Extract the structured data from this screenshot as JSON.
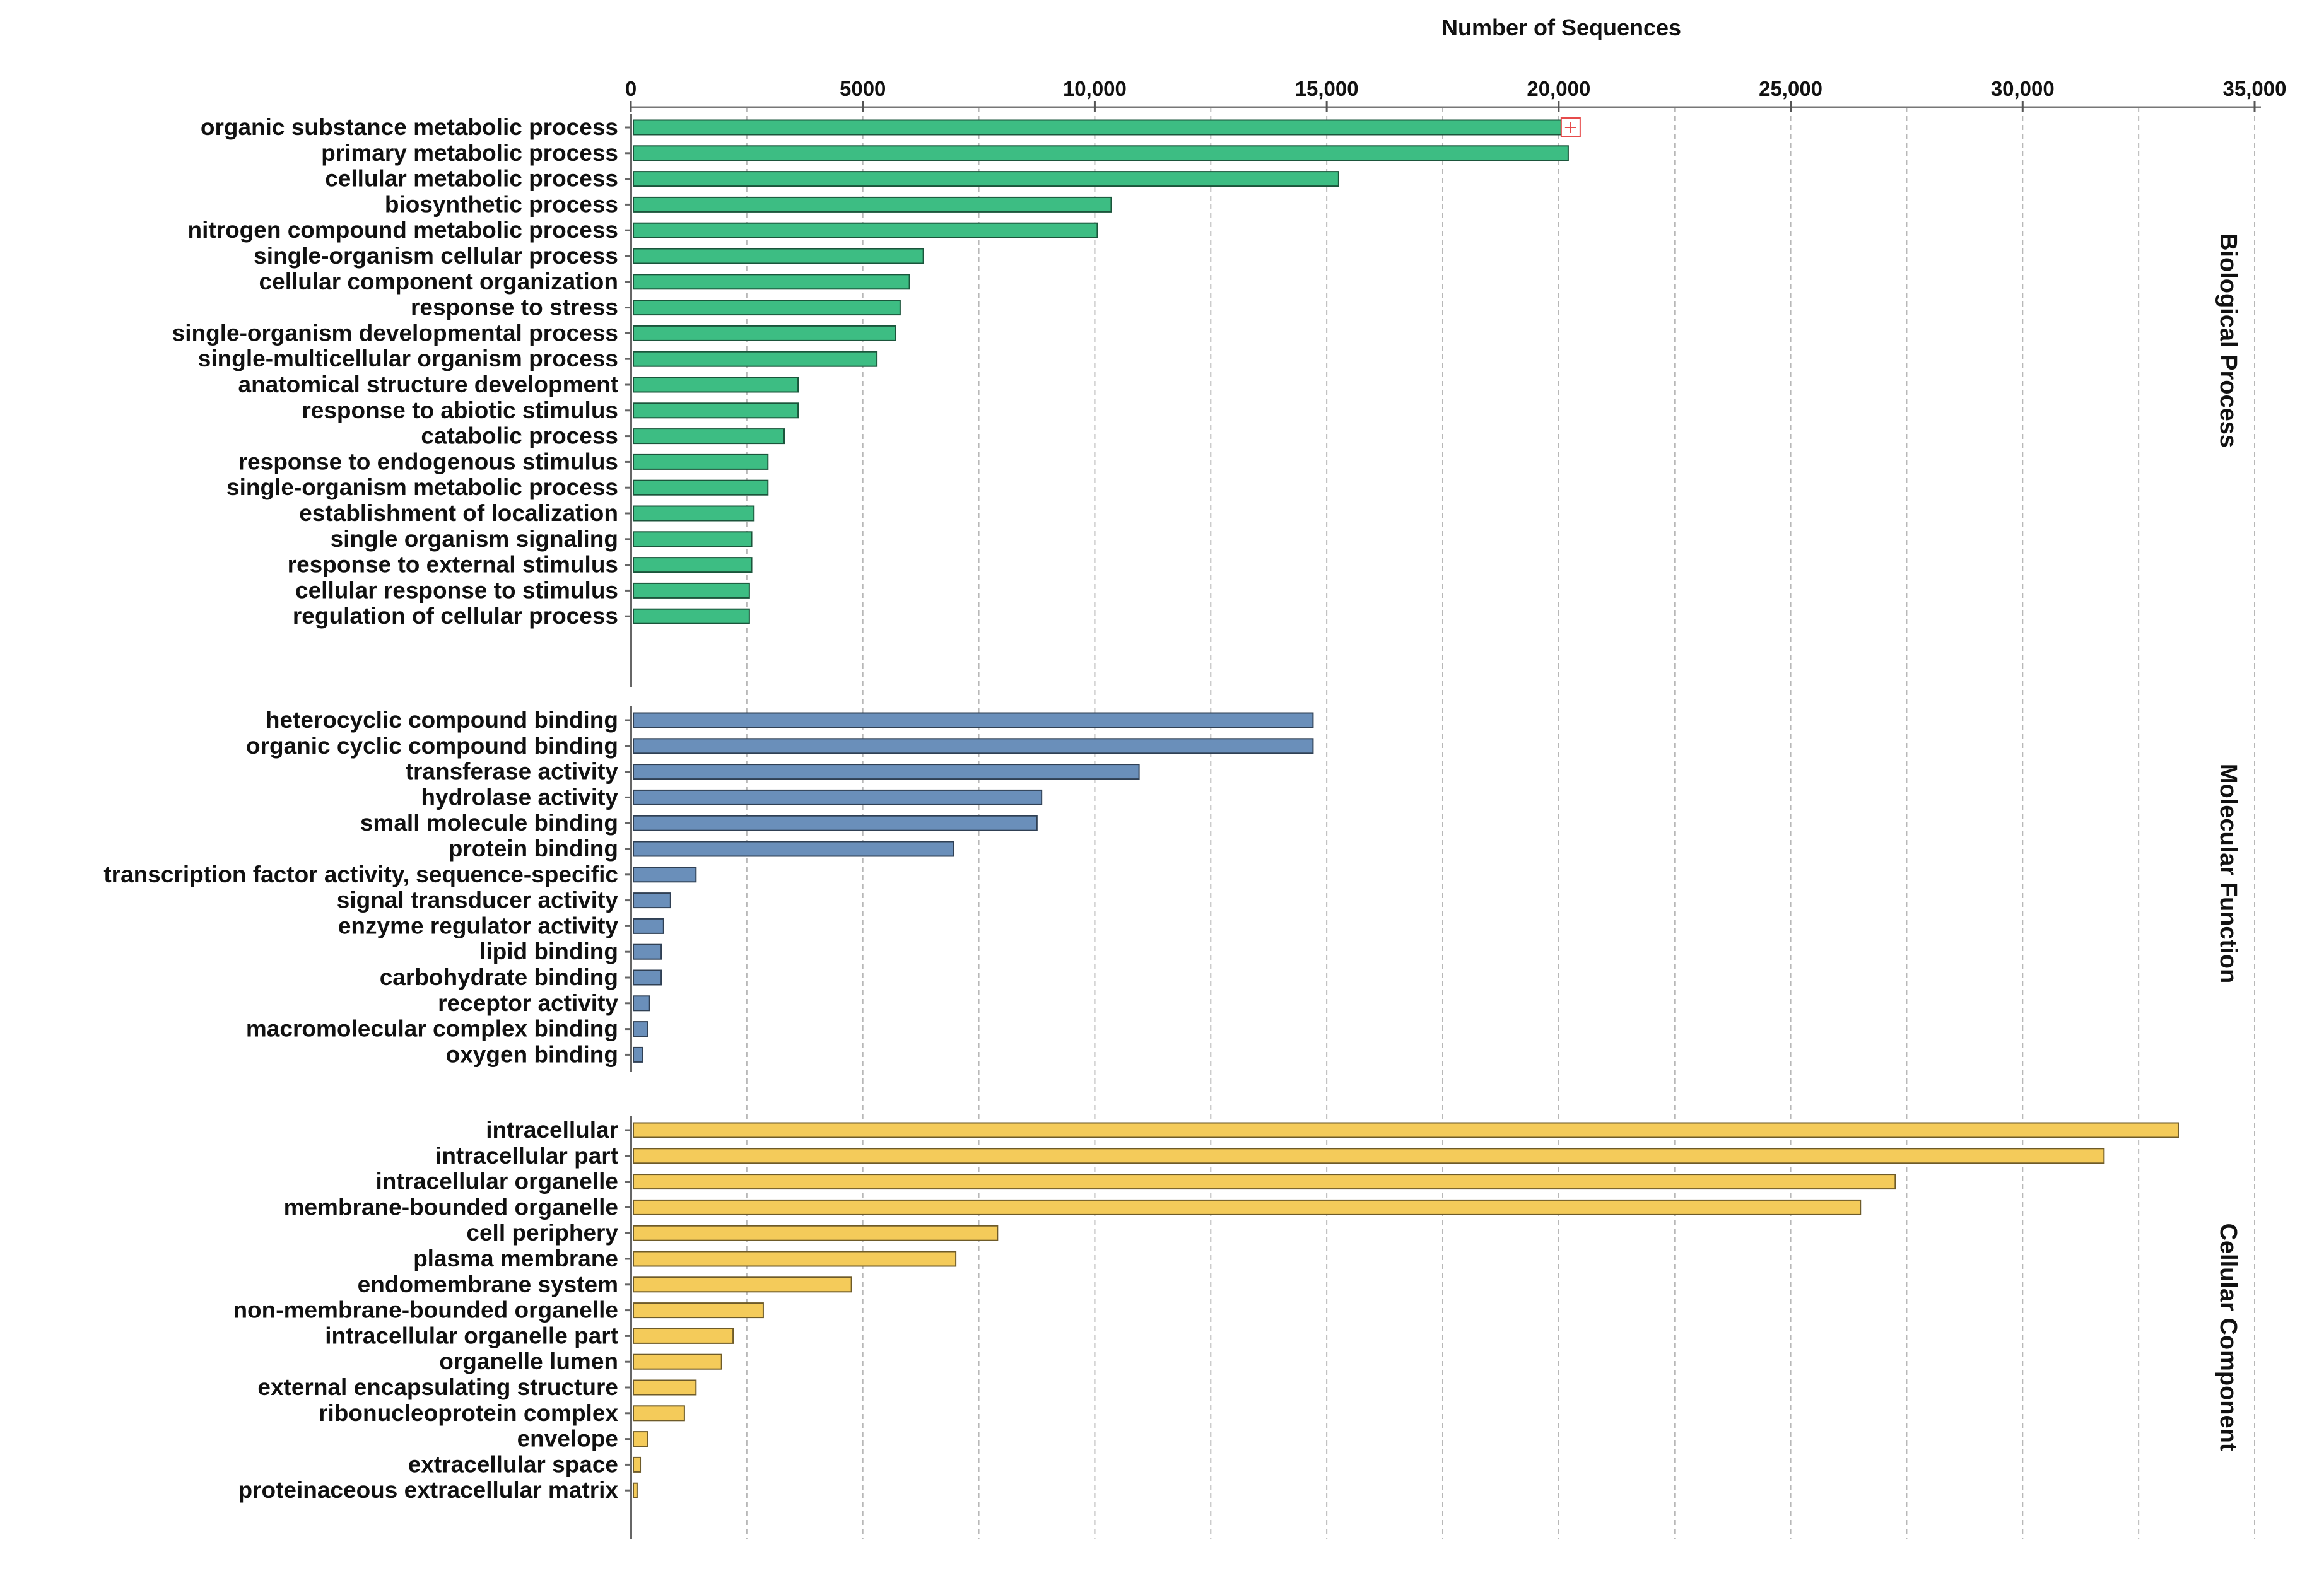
{
  "chart_data": {
    "type": "bar",
    "orientation": "horizontal",
    "xlabel": "Number of Sequences",
    "x_axis_position": "top",
    "xlim": [
      0,
      35000
    ],
    "xticks": [
      0,
      5000,
      10000,
      15000,
      20000,
      25000,
      30000,
      35000
    ],
    "xtick_labels": [
      "0",
      "5000",
      "10,000",
      "15,000",
      "20,000",
      "25,000",
      "30,000",
      "35,000"
    ],
    "grid": "vertical dashed",
    "panels": [
      {
        "name": "Biological Process",
        "color": "#3dbd83",
        "categories": [
          "organic substance metabolic process",
          "primary metabolic process",
          "cellular metabolic process",
          "biosynthetic process",
          "nitrogen compound metabolic process",
          "single-organism cellular process",
          "cellular component organization",
          "response to stress",
          "single-organism developmental process",
          "single-multicellular organism process",
          "anatomical structure development",
          "response to abiotic stimulus",
          "catabolic process",
          "response to endogenous stimulus",
          "single-organism metabolic process",
          "establishment of localization",
          "single organism signaling",
          "response to external stimulus",
          "cellular response to stimulus",
          "regulation of cellular process"
        ],
        "values": [
          20000,
          20150,
          15200,
          10300,
          10000,
          6250,
          5950,
          5750,
          5650,
          5250,
          3550,
          3550,
          3250,
          2900,
          2900,
          2600,
          2550,
          2550,
          2500,
          2500
        ]
      },
      {
        "name": "Molecular Function",
        "color": "#6a8fba",
        "categories": [
          "heterocyclic compound binding",
          "organic cyclic compound binding",
          "transferase activity",
          "hydrolase activity",
          "small molecule binding",
          "protein binding",
          "transcription factor activity, sequence-specific",
          "signal transducer activity",
          "enzyme regulator activity",
          "lipid binding",
          "carbohydrate binding",
          "receptor activity",
          "macromolecular complex binding",
          "oxygen binding"
        ],
        "values": [
          14650,
          14650,
          10900,
          8800,
          8700,
          6900,
          1350,
          800,
          650,
          600,
          600,
          350,
          300,
          200
        ]
      },
      {
        "name": "Cellular Component",
        "color": "#f4cb5a",
        "categories": [
          "intracellular",
          "intracellular part",
          "intracellular organelle",
          "membrane-bounded organelle",
          "cell periphery",
          "plasma membrane",
          "endomembrane system",
          "non-membrane-bounded organelle",
          "intracellular organelle part",
          "organelle lumen",
          "external encapsulating structure",
          "ribonucleoprotein complex",
          "envelope",
          "extracellular space",
          "proteinaceous extracellular matrix"
        ],
        "values": [
          33300,
          31700,
          27200,
          26450,
          7850,
          6950,
          4700,
          2800,
          2150,
          1900,
          1350,
          1100,
          300,
          150,
          80
        ]
      }
    ]
  }
}
